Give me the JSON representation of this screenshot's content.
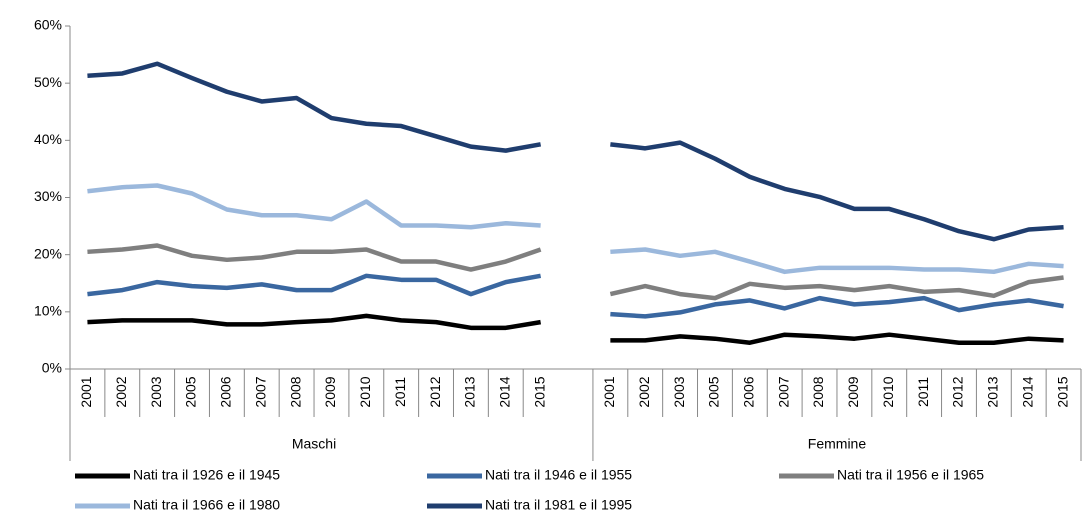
{
  "chart_data": {
    "type": "line",
    "categories": [
      "2001",
      "2002",
      "2003",
      "2005",
      "2006",
      "2007",
      "2008",
      "2009",
      "2010",
      "2011",
      "2012",
      "2013",
      "2014",
      "2015",
      null,
      "2001",
      "2002",
      "2003",
      "2005",
      "2006",
      "2007",
      "2008",
      "2009",
      "2010",
      "2011",
      "2012",
      "2013",
      "2014",
      "2015"
    ],
    "groups": [
      "Maschi",
      "Femmine"
    ],
    "ylim": [
      0,
      60
    ],
    "yticks": [
      {
        "value": 0,
        "label": "0%"
      },
      {
        "value": 10,
        "label": "10%"
      },
      {
        "value": 20,
        "label": "20%"
      },
      {
        "value": 30,
        "label": "30%"
      },
      {
        "value": 40,
        "label": "40%"
      },
      {
        "value": 50,
        "label": "50%"
      },
      {
        "value": 60,
        "label": "60%"
      }
    ],
    "series": [
      {
        "name": "Nati tra il 1926 e il 1945",
        "color": "#000000",
        "values": [
          8.2,
          8.5,
          8.5,
          8.5,
          7.8,
          7.8,
          8.2,
          8.5,
          9.3,
          8.5,
          8.2,
          7.2,
          7.2,
          8.2,
          null,
          5,
          5,
          5.7,
          5.3,
          4.6,
          6,
          5.7,
          5.3,
          6,
          5.3,
          4.6,
          4.6,
          5.3,
          5
        ]
      },
      {
        "name": "Nati tra il 1946 e il 1955",
        "color": "#3a67a0",
        "values": [
          13.1,
          13.8,
          15.2,
          14.5,
          14.2,
          14.8,
          13.8,
          13.8,
          16.3,
          15.6,
          15.6,
          13.1,
          15.2,
          16.3,
          null,
          9.6,
          9.2,
          9.9,
          11.3,
          12,
          10.6,
          12.4,
          11.3,
          11.7,
          12.4,
          10.3,
          11.3,
          12,
          11
        ]
      },
      {
        "name": "Nati tra il 1956 e il 1965",
        "color": "#7f7f7f",
        "values": [
          20.5,
          20.9,
          21.6,
          19.8,
          19.1,
          19.5,
          20.5,
          20.5,
          20.9,
          18.8,
          18.8,
          17.4,
          18.8,
          20.9,
          null,
          13.1,
          14.5,
          13.1,
          12.4,
          14.9,
          14.2,
          14.5,
          13.8,
          14.5,
          13.5,
          13.8,
          12.8,
          15.2,
          16
        ]
      },
      {
        "name": "Nati tra il 1966 e il 1980",
        "color": "#9bb8dc",
        "values": [
          31.1,
          31.8,
          32.1,
          30.7,
          27.9,
          26.9,
          26.9,
          26.2,
          29.3,
          25.1,
          25.1,
          24.8,
          25.5,
          25.1,
          null,
          20.5,
          20.9,
          19.8,
          20.5,
          18.8,
          17,
          17.7,
          17.7,
          17.7,
          17.4,
          17.4,
          17,
          18.4,
          18
        ]
      },
      {
        "name": "Nati tra il 1981 e il 1995",
        "color": "#1f3d6e",
        "values": [
          51.3,
          51.7,
          53.4,
          50.9,
          48.5,
          46.8,
          47.4,
          43.9,
          42.9,
          42.5,
          40.7,
          38.9,
          38.2,
          39.3,
          null,
          39.3,
          38.6,
          39.6,
          36.8,
          33.6,
          31.5,
          30.1,
          28,
          28,
          26.2,
          24.1,
          22.7,
          24.4,
          24.8
        ]
      }
    ]
  }
}
